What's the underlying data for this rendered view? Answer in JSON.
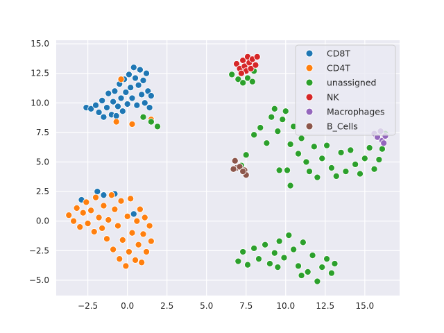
{
  "chart_data": {
    "type": "scatter",
    "title": "",
    "xlabel": "",
    "ylabel": "",
    "xlim": [
      -4.5,
      17.2
    ],
    "ylim": [
      -6.3,
      15.3
    ],
    "xticks": [
      -2.5,
      0.0,
      2.5,
      5.0,
      7.5,
      10.0,
      12.5,
      15.0
    ],
    "xtick_labels": [
      "−2.5",
      "0.0",
      "2.5",
      "5.0",
      "7.5",
      "10.0",
      "12.5",
      "15.0"
    ],
    "yticks": [
      -5.0,
      -2.5,
      0.0,
      2.5,
      5.0,
      7.5,
      10.0,
      12.5,
      15.0
    ],
    "ytick_labels": [
      "−5.0",
      "−2.5",
      "0.0",
      "2.5",
      "5.0",
      "7.5",
      "10.0",
      "12.5",
      "15.0"
    ],
    "grid": true,
    "legend_position": "top-right",
    "series": [
      {
        "name": "CD8T",
        "color": "#1f77b4",
        "points": [
          [
            -2.6,
            9.6
          ],
          [
            -2.3,
            9.5
          ],
          [
            -2.0,
            9.8
          ],
          [
            -1.8,
            9.2
          ],
          [
            -1.6,
            10.2
          ],
          [
            -1.5,
            8.8
          ],
          [
            -1.3,
            9.6
          ],
          [
            -1.2,
            10.8
          ],
          [
            -1.0,
            9.0
          ],
          [
            -0.9,
            10.1
          ],
          [
            -0.8,
            11.0
          ],
          [
            -0.7,
            8.9
          ],
          [
            -0.6,
            9.7
          ],
          [
            -0.5,
            11.6
          ],
          [
            -0.4,
            10.4
          ],
          [
            -0.3,
            9.3
          ],
          [
            -0.2,
            12.0
          ],
          [
            -0.1,
            10.9
          ],
          [
            0.0,
            9.9
          ],
          [
            0.1,
            12.4
          ],
          [
            0.2,
            11.3
          ],
          [
            0.3,
            10.4
          ],
          [
            0.4,
            13.0
          ],
          [
            0.5,
            12.1
          ],
          [
            0.6,
            9.8
          ],
          [
            0.7,
            11.5
          ],
          [
            0.8,
            12.8
          ],
          [
            0.9,
            10.7
          ],
          [
            1.0,
            11.9
          ],
          [
            1.1,
            10.0
          ],
          [
            1.2,
            12.5
          ],
          [
            1.3,
            11.0
          ],
          [
            1.4,
            9.6
          ],
          [
            1.5,
            10.6
          ],
          [
            -1.9,
            2.5
          ],
          [
            -1.5,
            2.2
          ],
          [
            -0.8,
            2.3
          ],
          [
            -2.9,
            1.8
          ],
          [
            0.4,
            0.6
          ]
        ]
      },
      {
        "name": "CD4T",
        "color": "#ff7f0e",
        "points": [
          [
            -3.7,
            0.5
          ],
          [
            -3.4,
            0.0
          ],
          [
            -3.2,
            1.1
          ],
          [
            -3.0,
            -0.5
          ],
          [
            -2.8,
            0.7
          ],
          [
            -2.6,
            1.6
          ],
          [
            -2.5,
            -0.2
          ],
          [
            -2.3,
            0.9
          ],
          [
            -2.1,
            -0.9
          ],
          [
            -2.0,
            2.0
          ],
          [
            -1.8,
            0.3
          ],
          [
            -1.6,
            -0.6
          ],
          [
            -1.5,
            1.3
          ],
          [
            -1.3,
            -1.5
          ],
          [
            -1.2,
            0.1
          ],
          [
            -1.0,
            2.2
          ],
          [
            -0.9,
            -2.4
          ],
          [
            -0.8,
            1.0
          ],
          [
            -0.6,
            -0.4
          ],
          [
            -0.5,
            -3.2
          ],
          [
            -0.4,
            1.7
          ],
          [
            -0.3,
            -1.6
          ],
          [
            -0.1,
            -3.8
          ],
          [
            0.0,
            0.4
          ],
          [
            0.1,
            -2.6
          ],
          [
            0.2,
            1.9
          ],
          [
            0.3,
            -1.0
          ],
          [
            0.5,
            -3.3
          ],
          [
            0.6,
            0.0
          ],
          [
            0.7,
            -2.0
          ],
          [
            0.8,
            1.0
          ],
          [
            0.9,
            -3.5
          ],
          [
            1.0,
            -1.1
          ],
          [
            1.1,
            0.3
          ],
          [
            1.2,
            -2.6
          ],
          [
            1.4,
            -0.4
          ],
          [
            1.5,
            -1.7
          ],
          [
            -0.7,
            8.4
          ],
          [
            -0.4,
            12.0
          ],
          [
            1.5,
            8.6
          ],
          [
            0.3,
            8.2
          ]
        ]
      },
      {
        "name": "unassigned",
        "color": "#2ca02c",
        "points": [
          [
            6.6,
            12.4
          ],
          [
            7.0,
            12.0
          ],
          [
            7.3,
            11.7
          ],
          [
            7.6,
            12.1
          ],
          [
            7.9,
            11.8
          ],
          [
            8.0,
            12.7
          ],
          [
            1.5,
            8.4
          ],
          [
            1.9,
            8.0
          ],
          [
            1.0,
            8.8
          ],
          [
            8.0,
            7.3
          ],
          [
            8.4,
            7.9
          ],
          [
            8.8,
            6.6
          ],
          [
            9.1,
            8.8
          ],
          [
            9.3,
            9.5
          ],
          [
            9.5,
            7.6
          ],
          [
            9.8,
            8.6
          ],
          [
            10.0,
            9.3
          ],
          [
            10.3,
            6.5
          ],
          [
            10.5,
            8.0
          ],
          [
            10.8,
            5.7
          ],
          [
            11.0,
            7.0
          ],
          [
            11.3,
            5.0
          ],
          [
            11.5,
            4.2
          ],
          [
            11.8,
            6.3
          ],
          [
            12.0,
            3.7
          ],
          [
            12.3,
            5.3
          ],
          [
            12.6,
            6.4
          ],
          [
            12.9,
            4.5
          ],
          [
            13.2,
            3.8
          ],
          [
            13.5,
            5.8
          ],
          [
            13.8,
            4.2
          ],
          [
            14.1,
            6.0
          ],
          [
            14.4,
            4.8
          ],
          [
            14.7,
            4.0
          ],
          [
            15.0,
            5.3
          ],
          [
            15.3,
            6.2
          ],
          [
            15.6,
            4.4
          ],
          [
            15.9,
            5.2
          ],
          [
            16.1,
            6.1
          ],
          [
            16.3,
            7.4
          ],
          [
            9.6,
            4.3
          ],
          [
            10.1,
            4.3
          ],
          [
            10.3,
            3.0
          ],
          [
            7.5,
            5.6
          ],
          [
            7.2,
            4.7
          ],
          [
            7.4,
            4.2
          ],
          [
            7.0,
            -3.4
          ],
          [
            7.3,
            -2.6
          ],
          [
            7.6,
            -3.7
          ],
          [
            8.0,
            -2.3
          ],
          [
            8.3,
            -3.2
          ],
          [
            8.7,
            -2.0
          ],
          [
            9.0,
            -3.6
          ],
          [
            9.3,
            -2.7
          ],
          [
            9.6,
            -1.7
          ],
          [
            9.9,
            -3.1
          ],
          [
            10.2,
            -1.2
          ],
          [
            10.5,
            -2.4
          ],
          [
            10.8,
            -3.8
          ],
          [
            11.1,
            -1.8
          ],
          [
            11.4,
            -4.3
          ],
          [
            11.7,
            -2.9
          ],
          [
            12.0,
            -5.1
          ],
          [
            12.3,
            -3.9
          ],
          [
            12.6,
            -3.2
          ],
          [
            12.9,
            -4.4
          ],
          [
            13.1,
            -3.6
          ],
          [
            9.5,
            -3.9
          ],
          [
            11.0,
            -4.6
          ]
        ]
      },
      {
        "name": "NK",
        "color": "#d62728",
        "points": [
          [
            6.9,
            13.3
          ],
          [
            7.1,
            12.9
          ],
          [
            7.3,
            13.6
          ],
          [
            7.4,
            13.1
          ],
          [
            7.5,
            12.7
          ],
          [
            7.6,
            13.9
          ],
          [
            7.7,
            13.4
          ],
          [
            7.8,
            12.9
          ],
          [
            7.9,
            13.7
          ],
          [
            8.1,
            13.2
          ],
          [
            8.2,
            13.9
          ],
          [
            7.2,
            12.5
          ]
        ]
      },
      {
        "name": "Macrophages",
        "color": "#9467bd",
        "points": [
          [
            15.6,
            7.4
          ],
          [
            15.8,
            7.1
          ],
          [
            16.0,
            7.6
          ],
          [
            16.1,
            6.8
          ],
          [
            16.3,
            7.2
          ],
          [
            16.2,
            6.6
          ]
        ]
      },
      {
        "name": "B_Cells",
        "color": "#8c564b",
        "points": [
          [
            6.8,
            5.1
          ],
          [
            6.9,
            4.5
          ],
          [
            7.1,
            4.6
          ],
          [
            7.4,
            4.3
          ],
          [
            7.5,
            3.9
          ],
          [
            7.3,
            4.2
          ],
          [
            6.7,
            4.4
          ]
        ]
      }
    ]
  }
}
